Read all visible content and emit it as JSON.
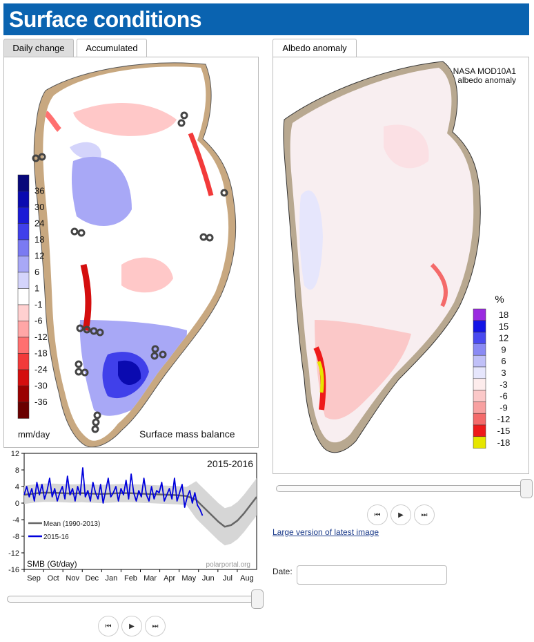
{
  "header": {
    "title": "Surface conditions"
  },
  "tabs_left": [
    {
      "label": "Daily change",
      "active": true
    },
    {
      "label": "Accumulated",
      "active": false
    }
  ],
  "tabs_right": [
    {
      "label": "Albedo anomaly",
      "active": true
    }
  ],
  "smb_map": {
    "caption": "Surface mass balance",
    "unit": "mm/day",
    "legend": [
      {
        "label": "36",
        "color": "#08087a"
      },
      {
        "label": "30",
        "color": "#0a0ab0"
      },
      {
        "label": "24",
        "color": "#1a1ad6"
      },
      {
        "label": "18",
        "color": "#4040ea"
      },
      {
        "label": "12",
        "color": "#7a7af2"
      },
      {
        "label": "6",
        "color": "#a8a8f6"
      },
      {
        "label": "1",
        "color": "#d4d4fb"
      },
      {
        "label": "-1",
        "color": "#ffffff"
      },
      {
        "label": "-6",
        "color": "#ffd0d0"
      },
      {
        "label": "-12",
        "color": "#ffa6a6"
      },
      {
        "label": "-18",
        "color": "#ff7070"
      },
      {
        "label": "-24",
        "color": "#f23a3a"
      },
      {
        "label": "-30",
        "color": "#d40e0e"
      },
      {
        "label": "-36",
        "color": "#9a0000"
      },
      {
        "label": "",
        "color": "#6a0000"
      }
    ]
  },
  "albedo_map": {
    "title_line1": "NASA MOD10A1",
    "title_line2": "albedo anomaly",
    "unit": "%",
    "legend": [
      {
        "label": "18",
        "color": "#9a2ae0"
      },
      {
        "label": "15",
        "color": "#1414e6"
      },
      {
        "label": "12",
        "color": "#4a4af0"
      },
      {
        "label": "9",
        "color": "#8a8af4"
      },
      {
        "label": "6",
        "color": "#c0c0f8"
      },
      {
        "label": "3",
        "color": "#e6e6fc"
      },
      {
        "label": "-3",
        "color": "#fdecec"
      },
      {
        "label": "-6",
        "color": "#fbc8c8"
      },
      {
        "label": "-9",
        "color": "#f8a0a0"
      },
      {
        "label": "-12",
        "color": "#f46a6a"
      },
      {
        "label": "-15",
        "color": "#ee1a1a"
      },
      {
        "label": "-18",
        "color": "#e6e600"
      }
    ]
  },
  "smb_chart": {
    "season_label": "2015-2016",
    "y_title": "SMB (Gt/day)",
    "credit": "polarportal.org",
    "legend": [
      {
        "label": "Mean (1990-2013)",
        "color": "#666666"
      },
      {
        "label": "2015-16",
        "color": "#0000dd"
      }
    ],
    "y_ticks": [
      "12",
      "8",
      "4",
      "0",
      "-4",
      "-8",
      "-12",
      "-16"
    ],
    "x_ticks": [
      "Sep",
      "Oct",
      "Nov",
      "Dec",
      "Jan",
      "Feb",
      "Mar",
      "Apr",
      "May",
      "Jun",
      "Jul",
      "Aug"
    ]
  },
  "chart_data": {
    "type": "line",
    "title": "2015-2016",
    "ylabel": "SMB (Gt/day)",
    "ylim": [
      -16,
      12
    ],
    "x_day_range": [
      0,
      365
    ],
    "x_ticks": [
      "Sep",
      "Oct",
      "Nov",
      "Dec",
      "Jan",
      "Feb",
      "Mar",
      "Apr",
      "May",
      "Jun",
      "Jul",
      "Aug"
    ],
    "legend_position": "lower-left",
    "series": [
      {
        "name": "Mean (1990-2013)",
        "color": "#666666",
        "x": [
          0,
          15,
          30,
          45,
          60,
          75,
          90,
          105,
          120,
          135,
          150,
          165,
          180,
          195,
          210,
          225,
          240,
          255,
          270,
          275,
          285,
          295,
          305,
          315,
          325,
          335,
          345,
          355,
          365
        ],
        "y": [
          2.0,
          2.3,
          2.5,
          2.5,
          2.4,
          2.3,
          2.4,
          2.3,
          2.2,
          2.3,
          2.4,
          2.4,
          2.3,
          2.2,
          2.1,
          2.0,
          1.9,
          1.7,
          0.8,
          0.0,
          -1.5,
          -3.0,
          -4.5,
          -5.7,
          -5.3,
          -4.2,
          -2.5,
          -0.5,
          1.5
        ]
      },
      {
        "name": "2015-16",
        "color": "#0000dd",
        "x": [
          0,
          4,
          8,
          12,
          16,
          20,
          24,
          28,
          32,
          36,
          40,
          44,
          48,
          52,
          56,
          60,
          64,
          68,
          72,
          76,
          80,
          84,
          88,
          92,
          96,
          100,
          104,
          108,
          112,
          116,
          120,
          124,
          128,
          132,
          136,
          140,
          144,
          148,
          152,
          156,
          160,
          164,
          168,
          172,
          176,
          180,
          184,
          188,
          192,
          196,
          200,
          204,
          208,
          212,
          216,
          220,
          224,
          228,
          232,
          236,
          240,
          244,
          248,
          252,
          256,
          260,
          264,
          268,
          272,
          276,
          280
        ],
        "y": [
          2,
          4,
          1.5,
          3.5,
          0.5,
          5,
          2,
          4.5,
          1,
          3,
          6,
          1.5,
          3.5,
          0.5,
          2.5,
          4,
          1,
          6.5,
          2,
          3.5,
          0.5,
          4,
          2,
          8.5,
          1.5,
          3,
          0.5,
          5,
          2.5,
          1,
          4.5,
          0,
          3,
          6,
          1.5,
          2.5,
          4,
          0.5,
          3.5,
          2,
          5.5,
          1,
          7,
          2.5,
          0.5,
          3,
          1.5,
          6,
          2,
          0.5,
          4,
          1,
          3,
          2.5,
          5,
          0.5,
          2,
          3.5,
          1,
          6,
          0.5,
          2.5,
          4.5,
          -1,
          1.5,
          3,
          0,
          2.5,
          -0.5,
          -1.5,
          -3
        ]
      }
    ]
  },
  "controls": {
    "large_version_link": "Large version of latest image",
    "date_label": "Date:",
    "date_value": ""
  }
}
